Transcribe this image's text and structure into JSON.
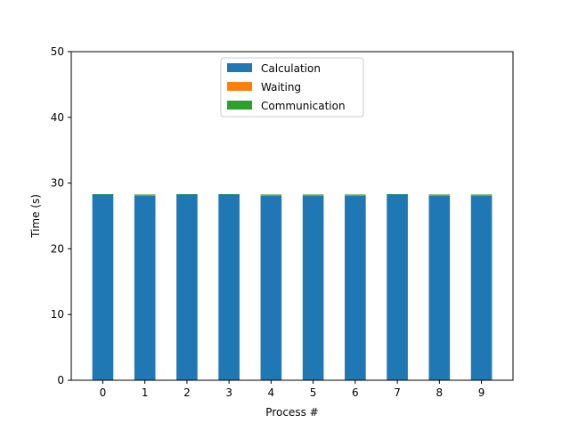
{
  "chart_data": {
    "type": "bar",
    "stacked": true,
    "title": "",
    "xlabel": "Process #",
    "ylabel": "Time (s)",
    "ylim": [
      0,
      50
    ],
    "yticks": [
      0,
      10,
      20,
      30,
      40,
      50
    ],
    "categories": [
      "0",
      "1",
      "2",
      "3",
      "4",
      "5",
      "6",
      "7",
      "8",
      "9"
    ],
    "series": [
      {
        "name": "Calculation",
        "color": "#1f77b4",
        "values": [
          28.3,
          28.1,
          28.3,
          28.3,
          28.1,
          28.1,
          28.1,
          28.3,
          28.1,
          28.1
        ]
      },
      {
        "name": "Waiting",
        "color": "#ff7f0e",
        "values": [
          0.0,
          0.15,
          0.0,
          0.0,
          0.15,
          0.15,
          0.15,
          0.0,
          0.15,
          0.15
        ]
      },
      {
        "name": "Communication",
        "color": "#2ca02c",
        "values": [
          0.02,
          0.02,
          0.02,
          0.02,
          0.02,
          0.02,
          0.02,
          0.02,
          0.02,
          0.02
        ]
      }
    ],
    "legend_position": "upper center",
    "grid": false
  }
}
